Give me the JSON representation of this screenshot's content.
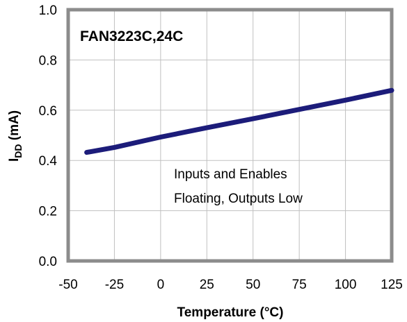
{
  "chart_data": {
    "type": "line",
    "title": "FAN3223C,24C",
    "xlabel": "Temperature (°C)",
    "ylabel": "IDD (mA)",
    "ylabel_main": "I",
    "ylabel_sub": "DD",
    "ylabel_rest": " (mA)",
    "xlim": [
      -50,
      125
    ],
    "ylim": [
      0.0,
      1.0
    ],
    "x_ticks": [
      -50,
      -25,
      0,
      25,
      50,
      75,
      100,
      125
    ],
    "x_tick_labels": [
      "-50",
      "-25",
      "0",
      "25",
      "50",
      "75",
      "100",
      "125"
    ],
    "y_ticks": [
      0.0,
      0.2,
      0.4,
      0.6,
      0.8,
      1.0
    ],
    "y_tick_labels": [
      "0.0",
      "0.2",
      "0.4",
      "0.6",
      "0.8",
      "1.0"
    ],
    "grid": true,
    "annotation": [
      "Inputs and Enables",
      "Floating, Outputs Low"
    ],
    "series": [
      {
        "x": [
          -40,
          -25,
          0,
          25,
          50,
          75,
          100,
          125
        ],
        "y": [
          0.432,
          0.452,
          0.493,
          0.53,
          0.566,
          0.603,
          0.64,
          0.679
        ],
        "color": "#1c1c7a"
      }
    ],
    "colors": {
      "line": "#1c1c7a",
      "frame": "#8c8c8c",
      "grid": "#c0c0c0"
    }
  }
}
